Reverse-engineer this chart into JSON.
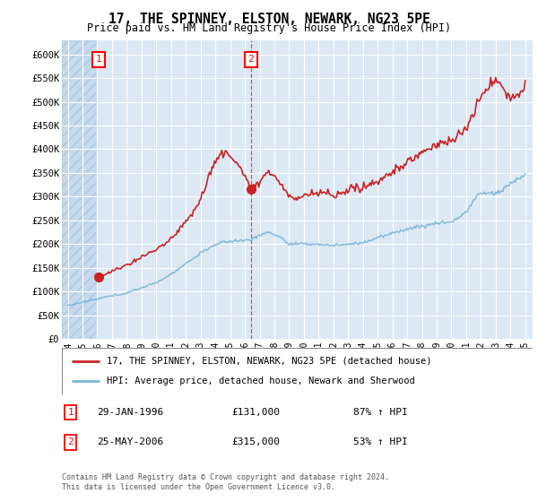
{
  "title": "17, THE SPINNEY, ELSTON, NEWARK, NG23 5PE",
  "subtitle": "Price paid vs. HM Land Registry's House Price Index (HPI)",
  "hpi_color": "#7ab4d8",
  "price_color": "#cc2222",
  "bg_color": "#dce9f5",
  "hatch_color": "#c5d9ef",
  "grid_color": "#ffffff",
  "purchase1_year": 1996.08,
  "purchase1_price": 131000,
  "purchase2_year": 2006.42,
  "purchase2_price": 315000,
  "legend_line1": "17, THE SPINNEY, ELSTON, NEWARK, NG23 5PE (detached house)",
  "legend_line2": "HPI: Average price, detached house, Newark and Sherwood",
  "note1_date": "29-JAN-1996",
  "note1_price": "£131,000",
  "note1_hpi": "87% ↑ HPI",
  "note2_date": "25-MAY-2006",
  "note2_price": "£315,000",
  "note2_hpi": "53% ↑ HPI",
  "footer1": "Contains HM Land Registry data © Crown copyright and database right 2024.",
  "footer2": "This data is licensed under the Open Government Licence v3.0.",
  "yticks": [
    0,
    50000,
    100000,
    150000,
    200000,
    250000,
    300000,
    350000,
    400000,
    450000,
    500000,
    550000,
    600000
  ],
  "ytick_labels": [
    "£0",
    "£50K",
    "£100K",
    "£150K",
    "£200K",
    "£250K",
    "£300K",
    "£350K",
    "£400K",
    "£450K",
    "£500K",
    "£550K",
    "£600K"
  ],
  "xlim_left": 1993.6,
  "xlim_right": 2025.5,
  "ylim_top": 630000
}
